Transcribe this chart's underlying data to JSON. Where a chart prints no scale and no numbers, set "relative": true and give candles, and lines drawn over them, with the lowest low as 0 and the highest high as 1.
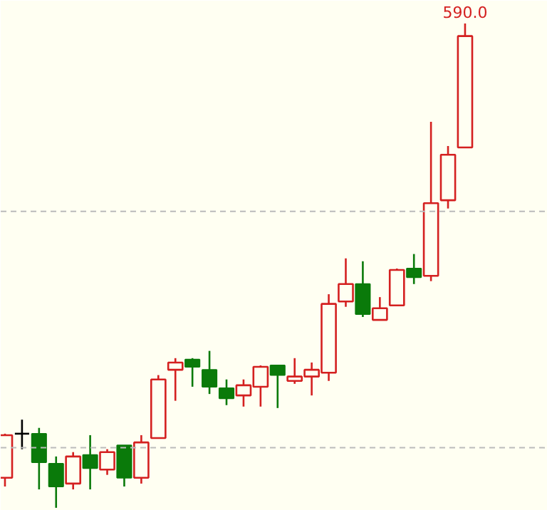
{
  "chart_data": {
    "type": "candlestick",
    "relative": true,
    "categories": [
      null,
      null,
      null,
      null,
      null,
      null,
      null,
      null,
      null,
      null,
      null,
      null,
      null,
      null,
      null,
      null,
      null,
      null,
      null,
      null,
      null,
      null,
      null,
      null,
      null,
      null,
      null,
      null
    ],
    "ohlc": [
      [
        0.062,
        0.153,
        0.044,
        0.15
      ],
      [
        0.153,
        0.182,
        0.121,
        0.153
      ],
      [
        0.153,
        0.165,
        0.038,
        0.094
      ],
      [
        0.091,
        0.106,
        0.0,
        0.044
      ],
      [
        0.05,
        0.115,
        0.038,
        0.106
      ],
      [
        0.109,
        0.15,
        0.038,
        0.082
      ],
      [
        0.079,
        0.121,
        0.068,
        0.115
      ],
      [
        0.129,
        0.129,
        0.044,
        0.062
      ],
      [
        0.062,
        0.15,
        0.05,
        0.135
      ],
      [
        0.144,
        0.274,
        0.144,
        0.265
      ],
      [
        0.285,
        0.309,
        0.221,
        0.3
      ],
      [
        0.306,
        0.309,
        0.25,
        0.291
      ],
      [
        0.285,
        0.324,
        0.235,
        0.25
      ],
      [
        0.247,
        0.265,
        0.212,
        0.226
      ],
      [
        0.232,
        0.265,
        0.209,
        0.253
      ],
      [
        0.25,
        0.294,
        0.209,
        0.291
      ],
      [
        0.294,
        0.294,
        0.206,
        0.274
      ],
      [
        0.262,
        0.309,
        0.256,
        0.271
      ],
      [
        0.271,
        0.3,
        0.232,
        0.285
      ],
      [
        0.279,
        0.441,
        0.262,
        0.421
      ],
      [
        0.426,
        0.515,
        0.415,
        0.462
      ],
      [
        0.462,
        0.509,
        0.394,
        0.4
      ],
      [
        0.388,
        0.435,
        0.388,
        0.412
      ],
      [
        0.418,
        0.494,
        0.418,
        0.491
      ],
      [
        0.494,
        0.524,
        0.462,
        0.476
      ],
      [
        0.479,
        0.797,
        0.468,
        0.629
      ],
      [
        0.635,
        0.747,
        0.618,
        0.729
      ],
      [
        0.744,
        1.0,
        0.744,
        0.974
      ]
    ],
    "colors": [
      "#d42020",
      "#000000",
      "#0a7a0a",
      "#0a7a0a",
      "#d42020",
      "#0a7a0a",
      "#d42020",
      "#0a7a0a",
      "#d42020",
      "#d42020",
      "#d42020",
      "#0a7a0a",
      "#0a7a0a",
      "#0a7a0a",
      "#d42020",
      "#d42020",
      "#0a7a0a",
      "#d42020",
      "#d42020",
      "#d42020",
      "#d42020",
      "#0a7a0a",
      "#d42020",
      "#d42020",
      "#0a7a0a",
      "#d42020",
      "#d42020",
      "#d42020"
    ],
    "ref_lines": [
      {
        "axis": "y",
        "value": 0.612,
        "color": "#bbbbbb",
        "line_style": "dashed"
      },
      {
        "axis": "y",
        "value": 0.124,
        "color": "#bbbbbb",
        "line_style": "dashed"
      }
    ],
    "annotations": [
      "590.0"
    ],
    "grid": false
  }
}
